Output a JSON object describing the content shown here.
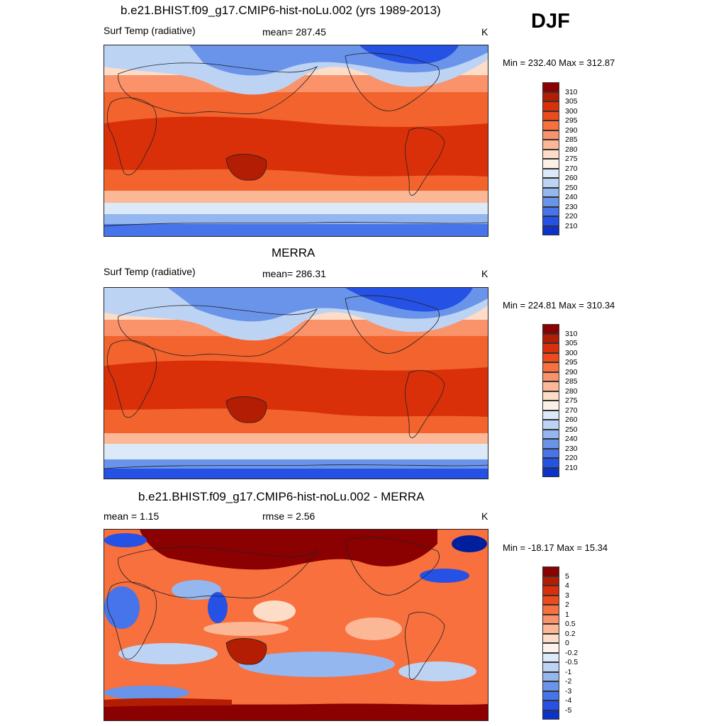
{
  "season": "DJF",
  "colors": {
    "abs_scale": [
      "#8b0000",
      "#b31d04",
      "#d9300a",
      "#ee4b1d",
      "#f7703d",
      "#fa926a",
      "#fcb797",
      "#fddcc8",
      "#fdf0e6",
      "#dce9f8",
      "#bdd3f4",
      "#94b7ef",
      "#6994ea",
      "#4774ea",
      "#2551e5",
      "#0b33cc",
      "#001f9f",
      "#001076"
    ],
    "diff_scale": [
      "#8b0000",
      "#b31d04",
      "#d9300a",
      "#ee4b1d",
      "#f7703d",
      "#fa926a",
      "#fcb797",
      "#fddcc8",
      "#fdf3ec",
      "#dce9f8",
      "#bdd3f4",
      "#94b7ef",
      "#6994ea",
      "#4774ea",
      "#2551e5",
      "#0b33cc",
      "#001f9f",
      "#001076"
    ]
  },
  "panels": [
    {
      "title": "b.e21.BHIST.f09_g17.CMIP6-hist-noLu.002 (yrs 1989-2013)",
      "left_label": "Surf Temp (radiative)",
      "center_label": "mean= 287.45",
      "units": "K",
      "minmax": "Min = 232.40 Max = 312.87",
      "colorbar_labels": [
        "310",
        "305",
        "300",
        "295",
        "290",
        "285",
        "280",
        "275",
        "270",
        "260",
        "250",
        "240",
        "230",
        "220",
        "210"
      ]
    },
    {
      "title": "MERRA",
      "left_label": "Surf Temp (radiative)",
      "center_label": "mean= 286.31",
      "units": "K",
      "minmax": "Min = 224.81 Max = 310.34",
      "colorbar_labels": [
        "310",
        "305",
        "300",
        "295",
        "290",
        "285",
        "280",
        "275",
        "270",
        "260",
        "250",
        "240",
        "230",
        "220",
        "210"
      ]
    },
    {
      "title": "b.e21.BHIST.f09_g17.CMIP6-hist-noLu.002 - MERRA",
      "left_label": "mean =   1.15",
      "center_label": "rmse =   2.56",
      "units": "K",
      "minmax": "Min = -18.17 Max =  15.34",
      "colorbar_labels": [
        "5",
        "4",
        "3",
        "2",
        "1",
        "0.5",
        "0.2",
        "0",
        "-0.2",
        "-0.5",
        "-1",
        "-2",
        "-3",
        "-4",
        "-5"
      ]
    }
  ]
}
